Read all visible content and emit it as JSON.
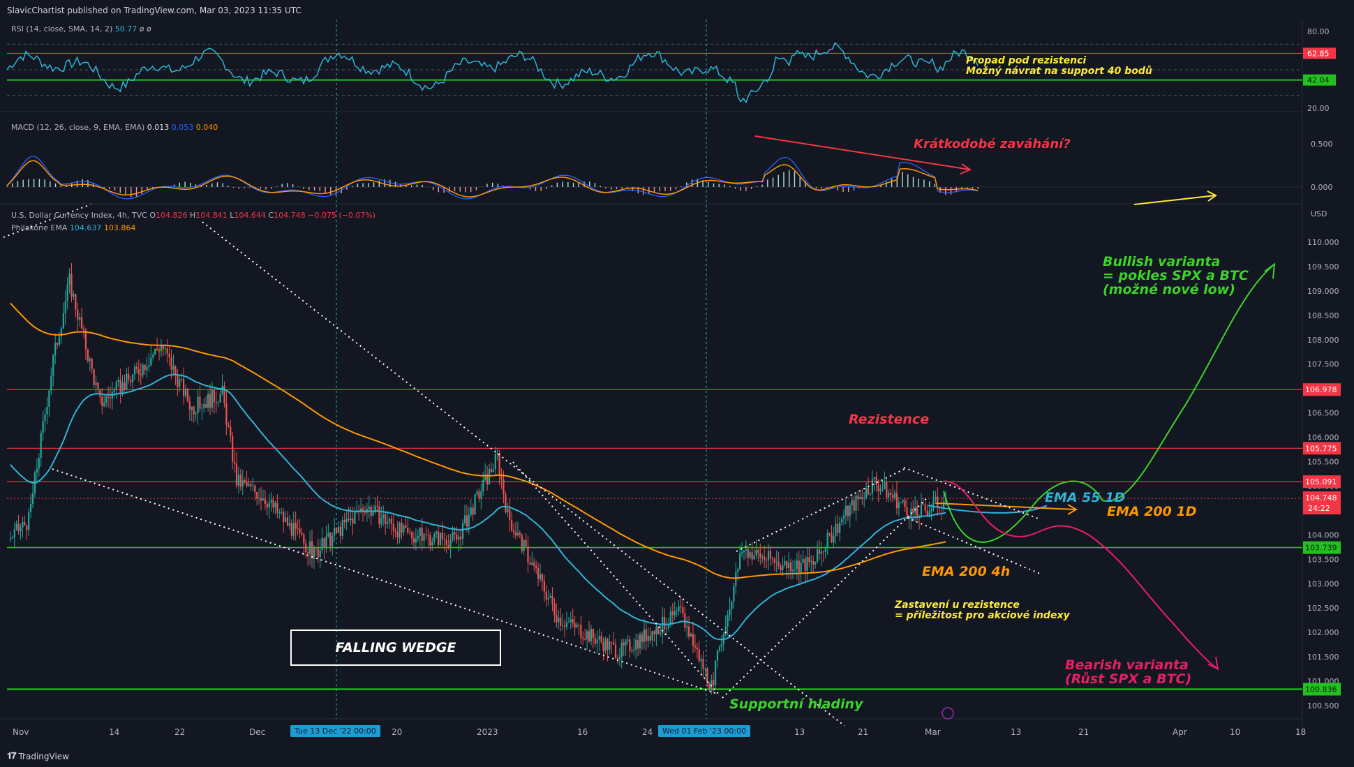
{
  "header": {
    "published": "SlavicChartist published on TradingView.com, Mar 03, 2023 11:35 UTC"
  },
  "rsi": {
    "legend_name": "RSI (14, close, SMA, 14, 2)",
    "legend_value": "50.77",
    "legend_extra": "ø ø",
    "ticks": [
      "80.00",
      "20.00"
    ],
    "resistance_tag": "62.85",
    "support_tag": "42.04",
    "annotation_line1": "Propad pod rezistenci",
    "annotation_line2": "Možný návrat na support 40 bodů"
  },
  "macd": {
    "legend_name": "MACD (12, 26, close, 9, EMA, EMA)",
    "legend_hist": "0.013",
    "legend_macd": "0.053",
    "legend_signal": "0.040",
    "ticks": [
      "0.500",
      "0.000"
    ],
    "annotation": "Krátkodobé zaváhání?"
  },
  "main": {
    "symbol": "U.S. Dollar Currency Index, 4h, TVC",
    "o_label": "O",
    "o_value": "104.826",
    "h_label": "H",
    "h_value": "104.841",
    "l_label": "L",
    "l_value": "104.644",
    "c_label": "C",
    "c_value": "104.748",
    "change": "−0.075 (−0.07%)",
    "ema_legend": "Philakone EMA",
    "ema55_value": "104.637",
    "ema200_value": "103.864",
    "currency": "USD",
    "price_ticks": [
      "110.000",
      "109.500",
      "109.000",
      "108.500",
      "108.000",
      "107.500",
      "107.000",
      "106.500",
      "106.000",
      "105.500",
      "105.000",
      "104.500",
      "104.000",
      "103.500",
      "103.000",
      "102.500",
      "102.000",
      "101.500",
      "101.000",
      "100.500"
    ],
    "price_tags": {
      "r1": "106.978",
      "r2": "105.775",
      "r3": "105.091",
      "last": "104.748",
      "countdown": "24:22",
      "s1": "103.739",
      "s2": "100.836"
    },
    "annotations": {
      "resistance": "Rezistence",
      "ema55_1d": "EMA 55 1D",
      "ema200_1d": "EMA 200 1D",
      "ema200_4h": "EMA 200 4h",
      "bullish_1": "Bullish varianta",
      "bullish_2": "= pokles SPX a BTC",
      "bullish_3": "(možné nové low)",
      "bearish_1": "Bearish varianta",
      "bearish_2": "(Růst SPX a BTC)",
      "stop_1": "Zastavení u rezistence",
      "stop_2": "= příležitost pro akciové indexy",
      "support": "Supportní hladiny",
      "wedge": "FALLING WEDGE"
    },
    "x_ticks": [
      "Nov",
      "14",
      "22",
      "Dec",
      "20",
      "2023",
      "16",
      "24",
      "13",
      "21",
      "Mar",
      "13",
      "21",
      "Apr",
      "10",
      "18"
    ],
    "cursor_tag_1": "Tue 13 Dec '22   00:00",
    "cursor_tag_2": "Wed 01 Feb '23   00:00"
  },
  "footer": {
    "brand": "TradingView"
  },
  "colors": {
    "background": "#131722",
    "up": "#26a69a",
    "down": "#ef5350",
    "ema55": "#2db4d6",
    "ema200": "#ff9800",
    "rsi": "#2db4d6",
    "macd": "#2962ff",
    "signal": "#ff9800",
    "resistance_line": "#f23645",
    "support_line": "#22c11f",
    "bull_path": "#3bd428",
    "bear_path": "#e91e63",
    "note_yellow": "#ffeb3b"
  },
  "chart_data": {
    "type": "candlestick",
    "symbol": "DXY",
    "timeframe": "4h",
    "ohlc_last": {
      "open": 104.826,
      "high": 104.841,
      "low": 104.644,
      "close": 104.748
    },
    "ylim": [
      100.5,
      110.0
    ],
    "x": [
      "Nov",
      "14",
      "22",
      "Dec",
      "20",
      "2023",
      "16",
      "24",
      "13",
      "21",
      "Mar",
      "13",
      "21",
      "Apr",
      "10",
      "18"
    ],
    "price_path": [
      [
        "Nov",
        103.9
      ],
      [
        "Nov",
        104.3
      ],
      [
        "14",
        107.6
      ],
      [
        "14",
        106.7
      ],
      [
        "22",
        107.9
      ],
      [
        "22",
        106.6
      ],
      [
        "Dec",
        106.9
      ],
      [
        "Dec",
        105.1
      ],
      [
        "20",
        103.6
      ],
      [
        "20",
        104.6
      ],
      [
        "2023",
        103.9
      ],
      [
        "2023",
        105.6
      ],
      [
        "2023",
        104.3
      ],
      [
        "16",
        102.3
      ],
      [
        "24",
        101.6
      ],
      [
        "24",
        102.4
      ],
      [
        "24",
        100.9
      ],
      [
        "13",
        103.7
      ],
      [
        "13",
        103.4
      ],
      [
        "21",
        104.4
      ],
      [
        "21",
        105.1
      ],
      [
        "Mar",
        104.7
      ]
    ],
    "ema55_4h_last": 104.637,
    "ema200_4h_last": 103.864,
    "horizontal_levels": [
      106.978,
      105.775,
      105.091,
      103.739,
      100.836
    ],
    "rsi": {
      "last": 50.77,
      "levels": [
        80,
        62.85,
        42.04,
        20
      ]
    },
    "macd": {
      "hist": 0.013,
      "macd": 0.053,
      "signal": 0.04
    }
  }
}
